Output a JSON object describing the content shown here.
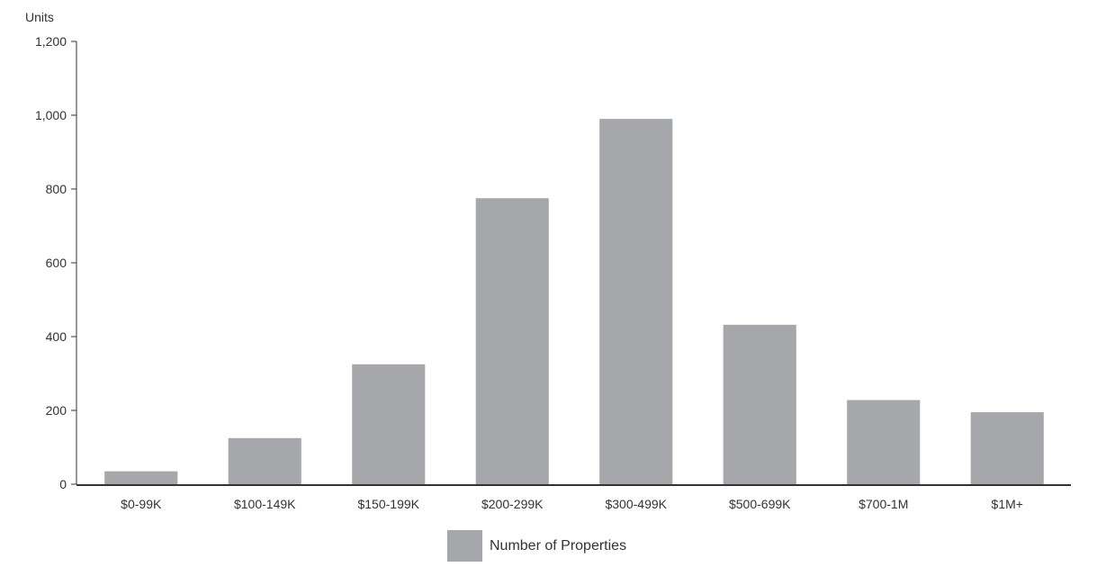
{
  "chart_data": {
    "type": "bar",
    "ylabel": "Units",
    "ylim": [
      0,
      1200
    ],
    "yticks": [
      0,
      200,
      400,
      600,
      800,
      1000,
      1200
    ],
    "ytick_labels": [
      "0",
      "200",
      "400",
      "600",
      "800",
      "1,000",
      "1,200"
    ],
    "categories": [
      "$0-99K",
      "$100-149K",
      "$150-199K",
      "$200-299K",
      "$300-499K",
      "$500-699K",
      "$700-1M",
      "$1M+"
    ],
    "series": [
      {
        "name": "Number of Properties",
        "values": [
          35,
          125,
          325,
          775,
          990,
          432,
          228,
          195
        ]
      }
    ],
    "bar_color": "#a6a7aa",
    "axis_color": "#333333",
    "grid": false,
    "legend": "bottom-center"
  }
}
